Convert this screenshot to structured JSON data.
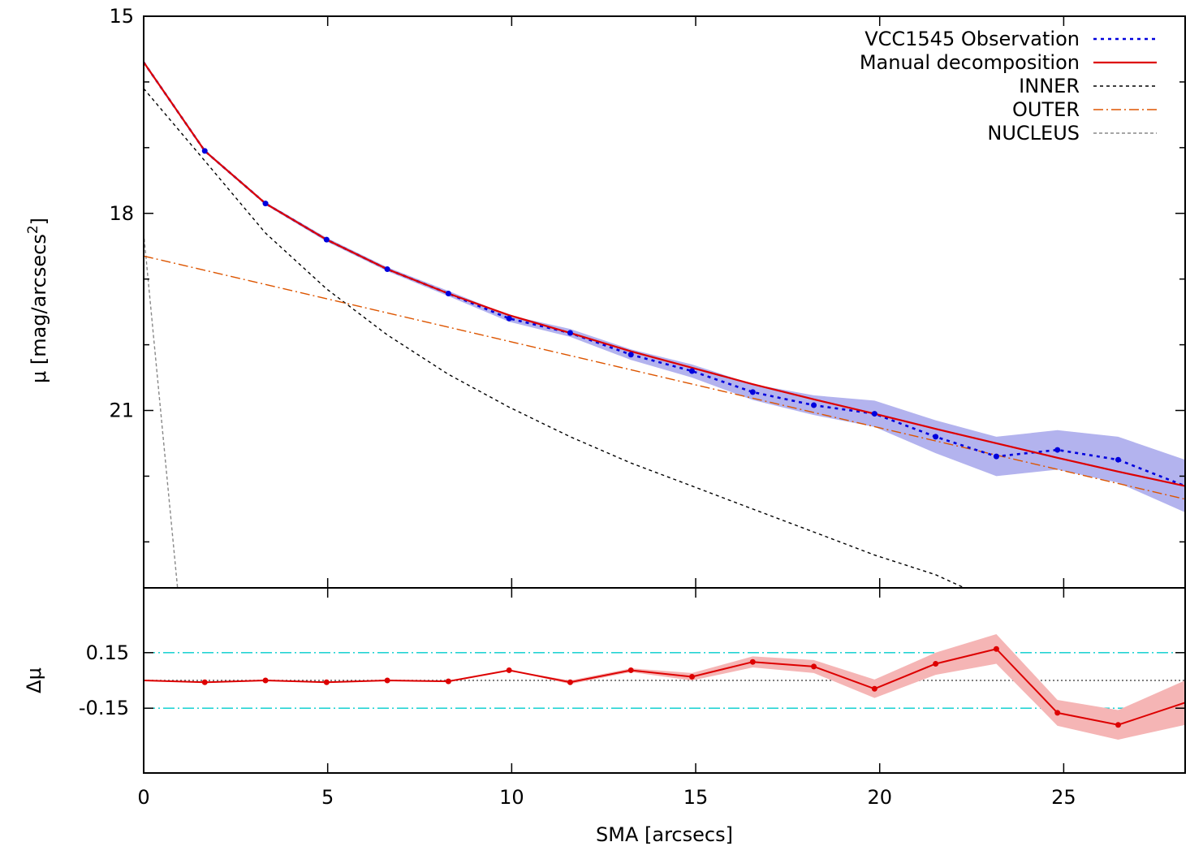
{
  "chart_data": [
    {
      "type": "line",
      "panel": "top",
      "ylabel": "μ [mag/arcsecs",
      "ylabel_sup": "2",
      "ylabel_close": "]",
      "xlim": [
        0,
        28.3
      ],
      "ylim": [
        23.7,
        15
      ],
      "y_inverted": true,
      "yticks": [
        15,
        18,
        21
      ],
      "yticklabels": [
        "15",
        "18",
        "21"
      ],
      "legend_position": "top-right",
      "grid": false,
      "series": [
        {
          "name": "VCC1545 Observation",
          "style": "blue dotted with points and shaded error band",
          "color": "#0000dd",
          "band_color": "#b3b3ee",
          "x": [
            0,
            1.66,
            3.31,
            4.97,
            6.62,
            8.28,
            9.93,
            11.59,
            13.24,
            14.9,
            16.55,
            18.21,
            19.86,
            21.52,
            23.17,
            24.83,
            26.48,
            28.3
          ],
          "y": [
            15.7,
            17.05,
            17.85,
            18.4,
            18.85,
            19.22,
            19.6,
            19.82,
            20.15,
            20.4,
            20.72,
            20.92,
            21.05,
            21.4,
            21.7,
            21.6,
            21.75,
            22.15
          ],
          "err": [
            0.02,
            0.02,
            0.02,
            0.03,
            0.03,
            0.04,
            0.05,
            0.06,
            0.08,
            0.1,
            0.12,
            0.15,
            0.2,
            0.25,
            0.3,
            0.3,
            0.35,
            0.4
          ]
        },
        {
          "name": "Manual decomposition",
          "style": "red solid",
          "color": "#dd0000",
          "x": [
            0,
            1.66,
            3.31,
            4.97,
            6.62,
            8.28,
            9.93,
            11.59,
            13.24,
            14.9,
            16.55,
            18.21,
            19.86,
            21.52,
            23.17,
            24.83,
            26.48,
            28.3
          ],
          "y": [
            15.7,
            17.05,
            17.85,
            18.4,
            18.85,
            19.22,
            19.55,
            19.82,
            20.1,
            20.35,
            20.6,
            20.83,
            21.05,
            21.28,
            21.5,
            21.72,
            21.93,
            22.15
          ]
        },
        {
          "name": "INNER",
          "style": "black short dashes",
          "color": "#000000",
          "x": [
            0,
            1.66,
            3.31,
            4.97,
            6.62,
            8.28,
            9.93,
            11.59,
            13.24,
            14.9,
            16.55,
            18.21,
            19.86,
            21.52,
            22.3
          ],
          "y": [
            16.1,
            17.2,
            18.3,
            19.15,
            19.85,
            20.45,
            20.95,
            21.4,
            21.8,
            22.15,
            22.5,
            22.85,
            23.2,
            23.5,
            23.7
          ]
        },
        {
          "name": "OUTER",
          "style": "orange dash-dot",
          "color": "#dd5500",
          "x": [
            0,
            28.3
          ],
          "y": [
            18.65,
            22.35
          ]
        },
        {
          "name": "NUCLEUS",
          "style": "grey dashes",
          "color": "#888888",
          "x": [
            0,
            0.92
          ],
          "y": [
            18.3,
            23.7
          ]
        }
      ]
    },
    {
      "type": "line",
      "panel": "bottom",
      "xlabel": "SMA [arcsecs]",
      "ylabel": "Δμ",
      "xlim": [
        0,
        28.3
      ],
      "ylim": [
        -0.5,
        0.5
      ],
      "xticks": [
        0,
        5,
        10,
        15,
        20,
        25
      ],
      "xticklabels": [
        "0",
        "5",
        "10",
        "15",
        "20",
        "25"
      ],
      "yticks": [
        0.15,
        -0.15
      ],
      "yticklabels": [
        "0.15",
        "-0.15"
      ],
      "reference_lines": [
        {
          "y": 0.15,
          "style": "cyan dash-dot",
          "color": "#00cccc"
        },
        {
          "y": -0.15,
          "style": "cyan dash-dot",
          "color": "#00cccc"
        },
        {
          "y": 0,
          "style": "black dotted",
          "color": "#555555"
        }
      ],
      "series": [
        {
          "style": "red solid with points and shaded error band",
          "color": "#dd0000",
          "band_color": "#f5b5b5",
          "x": [
            0,
            1.66,
            3.31,
            4.97,
            6.62,
            8.28,
            9.93,
            11.59,
            13.24,
            14.9,
            16.55,
            18.21,
            19.86,
            21.52,
            23.17,
            24.83,
            26.48,
            28.3
          ],
          "y": [
            0.0,
            -0.01,
            0.0,
            -0.01,
            0.0,
            -0.005,
            0.055,
            -0.01,
            0.055,
            0.02,
            0.1,
            0.075,
            -0.045,
            0.09,
            0.17,
            -0.175,
            -0.24,
            -0.12
          ],
          "err": [
            0.0,
            0.0,
            0.0,
            0.0,
            0.0,
            0.0,
            0.0,
            0.01,
            0.01,
            0.02,
            0.03,
            0.035,
            0.05,
            0.06,
            0.08,
            0.07,
            0.08,
            0.12
          ]
        }
      ]
    }
  ]
}
